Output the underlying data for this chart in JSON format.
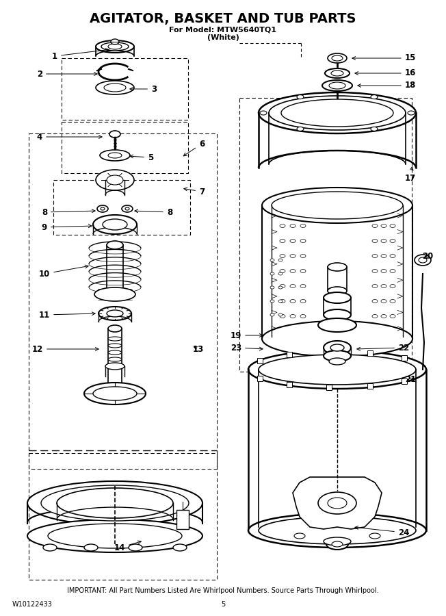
{
  "title": "AGITATOR, BASKET AND TUB PARTS",
  "subtitle1": "For Model: MTW5640TQ1",
  "subtitle2": "(White)",
  "footer_important": "IMPORTANT: All Part Numbers Listed Are Whirlpool Numbers. Source Parts Through Whirlpool.",
  "footer_left": "W10122433",
  "footer_page": "5",
  "bg_color": "#ffffff",
  "lc": "#000000",
  "title_fontsize": 14,
  "subtitle_fontsize": 8,
  "label_fontsize": 8.5,
  "footer_fontsize": 7
}
